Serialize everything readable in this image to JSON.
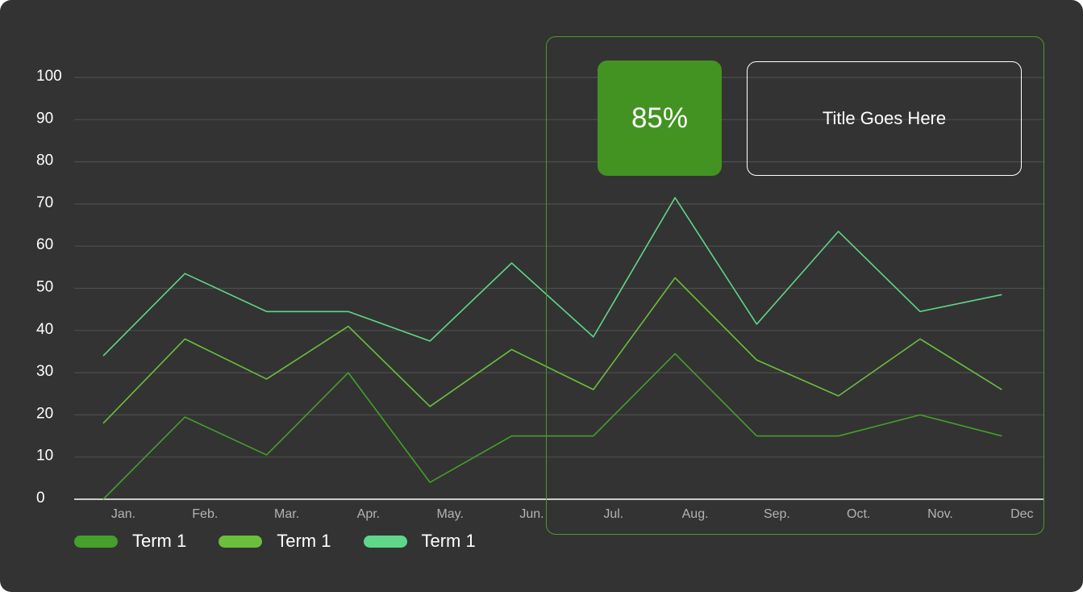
{
  "chart_data": {
    "type": "line",
    "categories": [
      "Jan.",
      "Feb.",
      "Mar.",
      "Apr.",
      "May.",
      "Jun.",
      "Jul.",
      "Aug.",
      "Sep.",
      "Oct.",
      "Nov.",
      "Dec"
    ],
    "yticks": [
      "0",
      "10",
      "20",
      "30",
      "40",
      "50",
      "60",
      "70",
      "80",
      "90",
      "100"
    ],
    "ylim": [
      0,
      100
    ],
    "grid": true,
    "legend_position": "bottom-left",
    "series": [
      {
        "name": "Term 1",
        "color": "#459f2b",
        "values": [
          0,
          19.5,
          10.5,
          30,
          4,
          15,
          15,
          34.5,
          15,
          15,
          20,
          15
        ]
      },
      {
        "name": "Term 1",
        "color": "#6cbf3c",
        "values": [
          18,
          38,
          28.5,
          41,
          22,
          35.5,
          26,
          52.5,
          33,
          24.5,
          38,
          26
        ]
      },
      {
        "name": "Term 1",
        "color": "#5fd68a",
        "values": [
          34,
          53.5,
          44.5,
          44.5,
          37.5,
          56,
          38.5,
          71.5,
          41.5,
          63.5,
          44.5,
          48.5
        ]
      }
    ]
  },
  "highlight": {
    "kpi_value": "85%",
    "kpi_color": "#439322",
    "title": "Title Goes Here"
  }
}
